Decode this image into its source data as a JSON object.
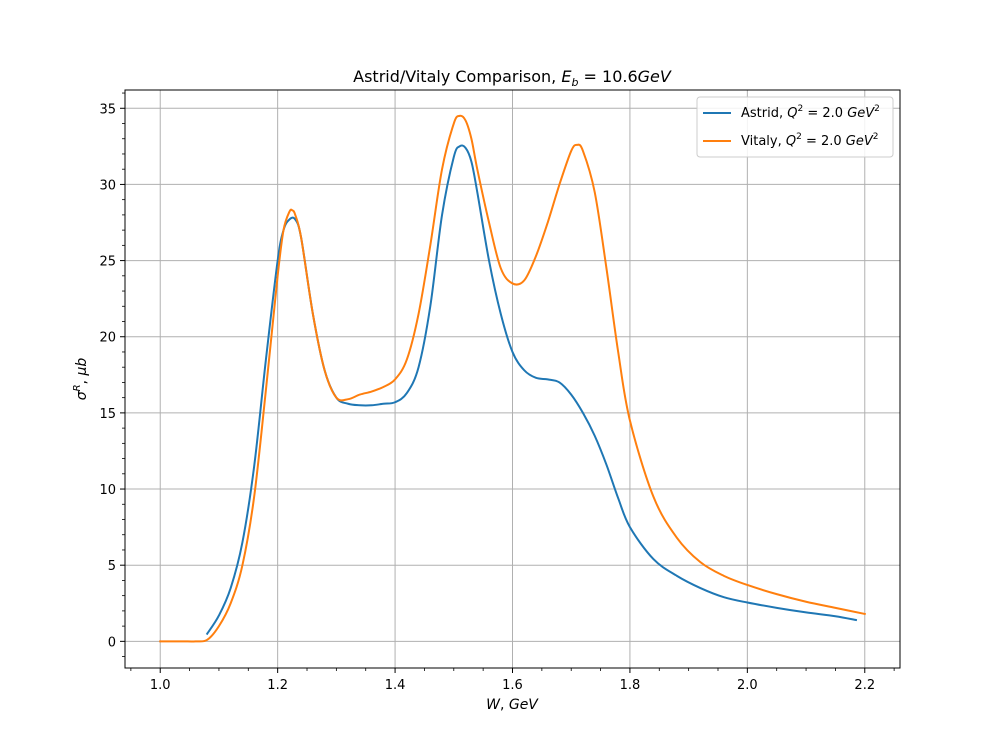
{
  "chart_data": {
    "type": "line",
    "title": "Astrid/Vitaly Comparison, E_b = 10.6GeV",
    "title_parts": {
      "prefix": "Astrid/Vitaly Comparison, ",
      "sym": "E",
      "sub": "b",
      "eq": " = 10.6",
      "unit": "GeV"
    },
    "xlabel": "W, GeV",
    "xlabel_parts": {
      "a": "W",
      "b": ", ",
      "c": "GeV"
    },
    "ylabel": "σ^R, μb",
    "ylabel_parts": {
      "a": "σ",
      "sup": "R",
      "b": ", ",
      "c": "μb"
    },
    "xlim": [
      0.94,
      2.26
    ],
    "ylim": [
      -1.75,
      36.2
    ],
    "grid": true,
    "legend_position": "top-right",
    "x_ticks": [
      1.0,
      1.2,
      1.4,
      1.6,
      1.8,
      2.0,
      2.2
    ],
    "x_tick_labels": [
      "1.0",
      "1.2",
      "1.4",
      "1.6",
      "1.8",
      "2.0",
      "2.2"
    ],
    "y_ticks": [
      0,
      5,
      10,
      15,
      20,
      25,
      30,
      35
    ],
    "y_tick_labels": [
      "0",
      "5",
      "10",
      "15",
      "20",
      "25",
      "30",
      "35"
    ],
    "x_minor_step": 0.05,
    "y_minor_step": 1,
    "series": [
      {
        "name": "Astrid, Q^2 = 2.0 GeV^2",
        "label_parts": {
          "name": "Astrid, ",
          "sym": "Q",
          "sup": "2",
          "eq": " = 2.0 ",
          "unit": "GeV",
          "unit_sup": "2"
        },
        "color": "#1f77b4",
        "x": [
          1.08,
          1.1,
          1.12,
          1.14,
          1.16,
          1.18,
          1.2,
          1.21,
          1.22,
          1.23,
          1.24,
          1.26,
          1.28,
          1.3,
          1.32,
          1.34,
          1.36,
          1.38,
          1.4,
          1.42,
          1.44,
          1.46,
          1.48,
          1.5,
          1.51,
          1.52,
          1.53,
          1.54,
          1.56,
          1.58,
          1.6,
          1.62,
          1.64,
          1.66,
          1.68,
          1.7,
          1.72,
          1.74,
          1.76,
          1.78,
          1.8,
          1.84,
          1.88,
          1.92,
          1.96,
          2.0,
          2.05,
          2.1,
          2.15,
          2.185
        ],
        "y": [
          0.5,
          1.7,
          3.5,
          6.5,
          11.5,
          18.5,
          25.0,
          27.0,
          27.7,
          27.7,
          26.5,
          21.5,
          17.8,
          16.0,
          15.6,
          15.5,
          15.5,
          15.6,
          15.7,
          16.3,
          18.0,
          22.0,
          28.0,
          31.8,
          32.5,
          32.4,
          31.5,
          29.5,
          25.0,
          21.5,
          19.0,
          17.8,
          17.3,
          17.2,
          17.0,
          16.2,
          15.0,
          13.5,
          11.6,
          9.4,
          7.5,
          5.4,
          4.3,
          3.5,
          2.9,
          2.55,
          2.2,
          1.9,
          1.65,
          1.4
        ]
      },
      {
        "name": "Vitaly, Q^2 = 2.0 GeV^2",
        "label_parts": {
          "name": "Vitaly, ",
          "sym": "Q",
          "sup": "2",
          "eq": " = 2.0 ",
          "unit": "GeV",
          "unit_sup": "2"
        },
        "color": "#ff7f0e",
        "x": [
          1.0,
          1.02,
          1.04,
          1.06,
          1.08,
          1.1,
          1.12,
          1.14,
          1.16,
          1.18,
          1.2,
          1.21,
          1.22,
          1.225,
          1.23,
          1.24,
          1.26,
          1.28,
          1.3,
          1.32,
          1.34,
          1.36,
          1.38,
          1.4,
          1.42,
          1.44,
          1.46,
          1.48,
          1.5,
          1.51,
          1.52,
          1.53,
          1.54,
          1.56,
          1.58,
          1.6,
          1.62,
          1.64,
          1.66,
          1.68,
          1.7,
          1.71,
          1.72,
          1.74,
          1.76,
          1.78,
          1.8,
          1.84,
          1.88,
          1.92,
          1.96,
          2.0,
          2.05,
          2.1,
          2.15,
          2.2
        ],
        "y": [
          0.0,
          0.0,
          0.0,
          0.0,
          0.1,
          1.0,
          2.5,
          5.0,
          9.5,
          16.5,
          24.0,
          27.0,
          28.2,
          28.3,
          28.0,
          26.5,
          21.5,
          17.8,
          16.0,
          15.9,
          16.2,
          16.4,
          16.7,
          17.2,
          18.5,
          21.5,
          26.0,
          31.0,
          34.0,
          34.5,
          34.2,
          33.0,
          31.0,
          27.5,
          24.5,
          23.5,
          23.7,
          25.3,
          27.5,
          30.0,
          32.2,
          32.6,
          32.2,
          29.5,
          24.5,
          19.0,
          14.5,
          9.5,
          6.8,
          5.2,
          4.3,
          3.7,
          3.1,
          2.6,
          2.2,
          1.8
        ]
      }
    ]
  }
}
